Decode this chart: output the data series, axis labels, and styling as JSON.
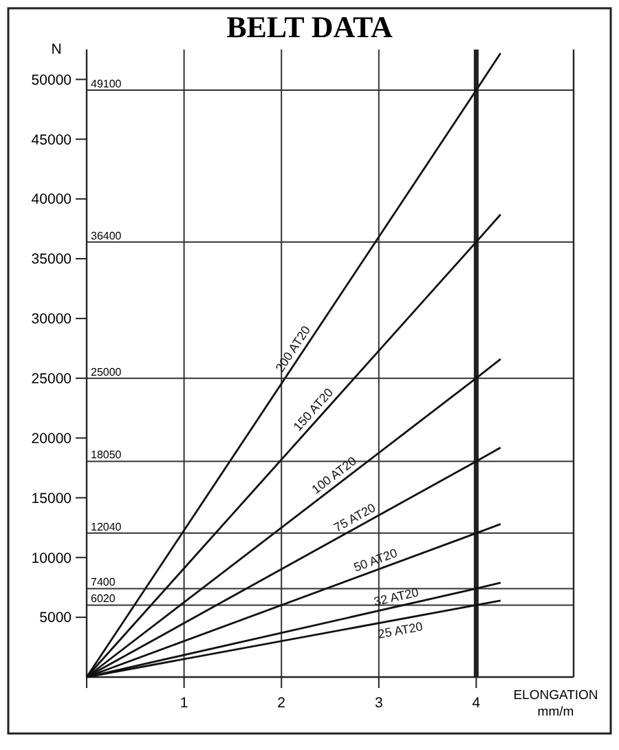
{
  "chart_data": {
    "type": "line",
    "title": "BELT DATA",
    "xlabel": "ELONGATION mm/m",
    "ylabel": "N",
    "xlim": [
      0,
      5
    ],
    "xticks": [
      {
        "value": 0,
        "label": null
      },
      1,
      2,
      3,
      4
    ],
    "ylim": [
      0,
      52500
    ],
    "yticks": [
      5000,
      10000,
      15000,
      20000,
      25000,
      30000,
      35000,
      40000,
      45000,
      50000
    ],
    "grid": "x",
    "marker": "none",
    "line_style": "solid",
    "series": [
      {
        "name": "200 AT20",
        "color": "#111111",
        "x": [
          0,
          4,
          4.25
        ],
        "values": [
          0,
          49100,
          52200
        ]
      },
      {
        "name": "150 AT20",
        "color": "#111111",
        "x": [
          0,
          4,
          4.25
        ],
        "values": [
          0,
          36400,
          38700
        ]
      },
      {
        "name": "100 AT20",
        "color": "#111111",
        "x": [
          0,
          4,
          4.25
        ],
        "values": [
          0,
          25000,
          26600
        ]
      },
      {
        "name": "75 AT20",
        "color": "#111111",
        "x": [
          0,
          4,
          4.25
        ],
        "values": [
          0,
          18050,
          19200
        ]
      },
      {
        "name": "50 AT20",
        "color": "#111111",
        "x": [
          0,
          4,
          4.25
        ],
        "values": [
          0,
          12040,
          12800
        ]
      },
      {
        "name": "32 AT20",
        "color": "#111111",
        "x": [
          0,
          4,
          4.25
        ],
        "values": [
          0,
          7400,
          7900
        ]
      },
      {
        "name": "25 AT20",
        "color": "#111111",
        "x": [
          0,
          4,
          4.25
        ],
        "values": [
          0,
          6020,
          6400
        ]
      }
    ],
    "ref_lines": [
      {
        "axis": "y",
        "value": 49100,
        "label": "49100"
      },
      {
        "axis": "y",
        "value": 36400,
        "label": "36400"
      },
      {
        "axis": "y",
        "value": 25000,
        "label": "25000"
      },
      {
        "axis": "y",
        "value": 18050,
        "label": "18050"
      },
      {
        "axis": "y",
        "value": 12040,
        "label": "12040"
      },
      {
        "axis": "y",
        "value": 7400,
        "label": "7400"
      },
      {
        "axis": "y",
        "value": 6020,
        "label": "6020"
      },
      {
        "axis": "x",
        "value": 4,
        "label": null,
        "color": "#222222"
      }
    ]
  }
}
